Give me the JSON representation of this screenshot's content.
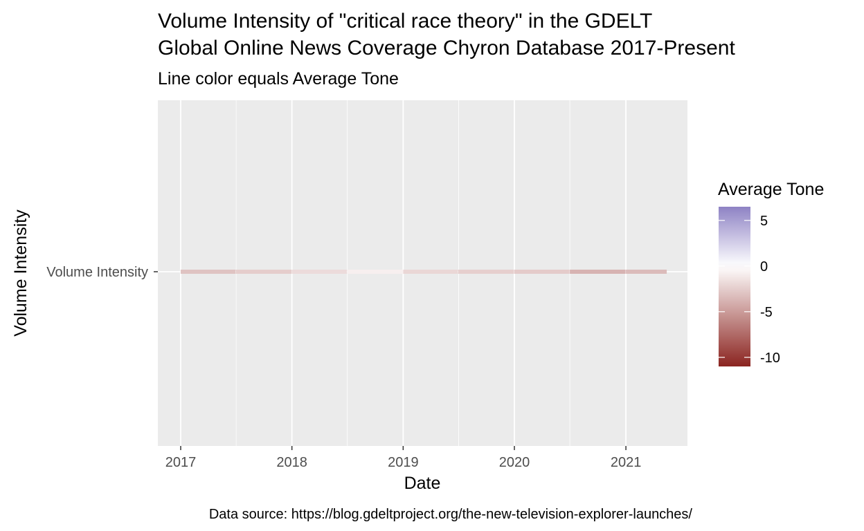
{
  "chart_data": {
    "type": "heatmap",
    "title_lines": [
      "Volume Intensity of \"critical race theory\" in the GDELT",
      "Global Online News Coverage Chyron Database 2017-Present"
    ],
    "subtitle": "Line color equals Average Tone",
    "xlabel": "Date",
    "ylabel": "Volume Intensity",
    "caption": "Data source: https://blog.gdeltproject.org/the-new-television-explorer-launches/",
    "y_category": "Volume Intensity",
    "x_ticks": [
      "2017",
      "2018",
      "2019",
      "2020",
      "2021"
    ],
    "x_range": [
      "2016-10-18",
      "2021-07-22"
    ],
    "x_minor_ticks": [
      "2017-07-02",
      "2018-07-02",
      "2019-07-02",
      "2020-07-01"
    ],
    "data_range": [
      "2017-01-01",
      "2021-05-15"
    ],
    "legend": {
      "title": "Average Tone",
      "placement": "right",
      "range": [
        -11,
        6.5
      ],
      "ticks": [
        5,
        0,
        -5,
        -10
      ],
      "tick_labels": [
        "5",
        "0",
        "-5",
        "-10"
      ],
      "colors": {
        "low": "#8b2420",
        "mid": "#ffffff",
        "high": "#8e82c4"
      }
    },
    "tone_segments": [
      {
        "start": "2017-01-01",
        "end": "2017-06-30",
        "tone": -3.0
      },
      {
        "start": "2017-07-01",
        "end": "2017-12-31",
        "tone": -2.5
      },
      {
        "start": "2018-01-01",
        "end": "2018-06-30",
        "tone": -1.8
      },
      {
        "start": "2018-07-01",
        "end": "2018-12-31",
        "tone": -0.8
      },
      {
        "start": "2019-01-01",
        "end": "2019-06-30",
        "tone": -2.0
      },
      {
        "start": "2019-07-01",
        "end": "2019-12-31",
        "tone": -2.4
      },
      {
        "start": "2020-01-01",
        "end": "2020-06-30",
        "tone": -2.6
      },
      {
        "start": "2020-07-01",
        "end": "2020-12-31",
        "tone": -3.8
      },
      {
        "start": "2021-01-01",
        "end": "2021-05-15",
        "tone": -3.4
      }
    ],
    "panel_background": "#ebebeb",
    "grid": true
  }
}
